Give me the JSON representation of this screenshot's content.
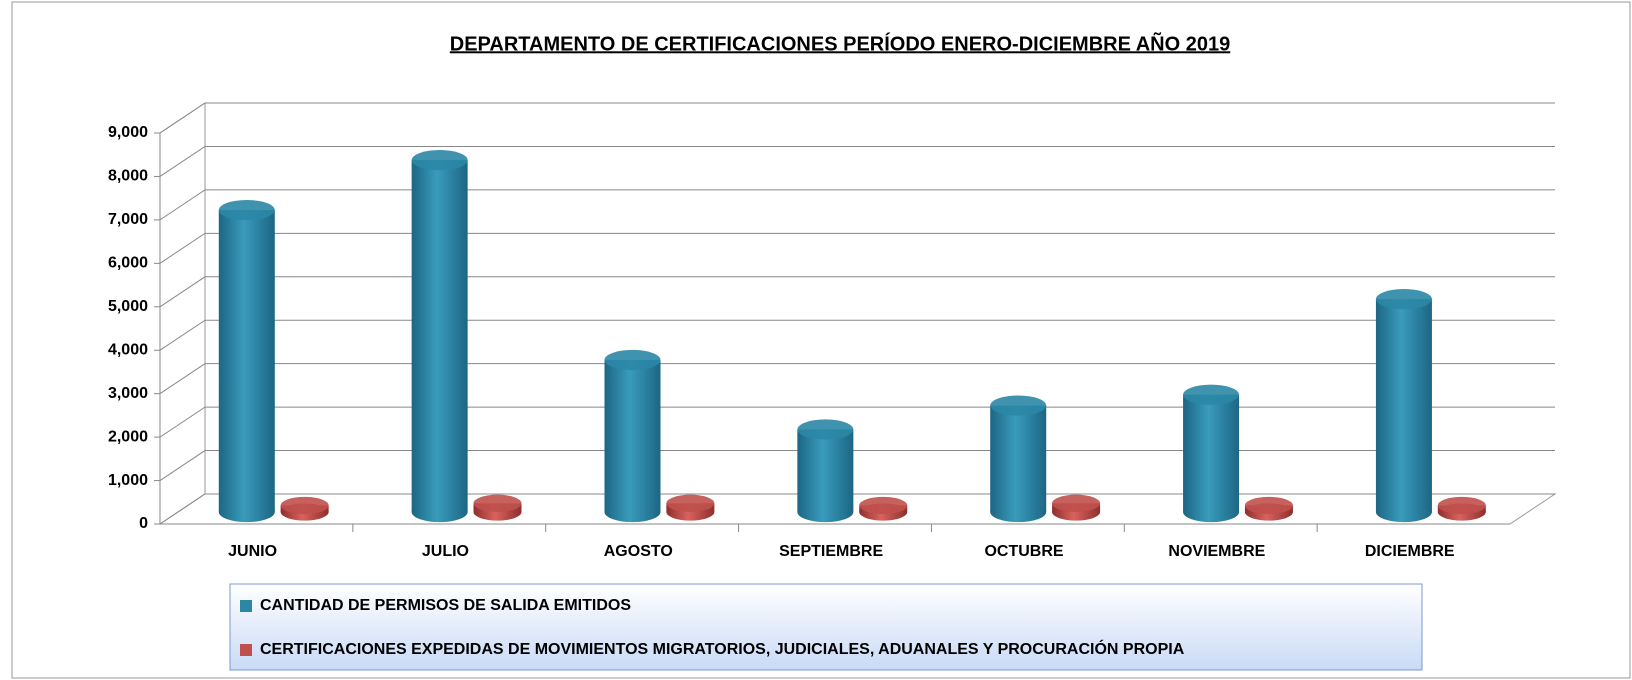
{
  "chart_data": {
    "type": "bar",
    "title": "DEPARTAMENTO DE CERTIFICACIONES PERÍODO ENERO-DICIEMBRE AÑO 2019",
    "categories": [
      "JUNIO",
      "JULIO",
      "AGOSTO",
      "SEPTIEMBRE",
      "OCTUBRE",
      "NOVIEMBRE",
      "DICIEMBRE"
    ],
    "series": [
      {
        "name": "CANTIDAD DE PERMISOS DE SALIDA EMITIDOS",
        "color": "#2b87a6",
        "values": [
          6950,
          8100,
          3500,
          1900,
          2450,
          2700,
          4900
        ]
      },
      {
        "name": "CERTIFICACIONES EXPEDIDAS DE MOVIMIENTOS MIGRATORIOS, JUDICIALES, ADUANALES Y PROCURACIÓN PROPIA",
        "color": "#c0504d",
        "values": [
          150,
          200,
          200,
          150,
          200,
          150,
          150
        ]
      }
    ],
    "ylim": [
      0,
      9000
    ],
    "yticks": [
      0,
      {
        "value": 1000,
        "label": "1,000"
      },
      {
        "value": 2000,
        "label": "2,000"
      },
      {
        "value": 3000,
        "label": "3,000"
      },
      {
        "value": 4000,
        "label": "4,000"
      },
      {
        "value": 5000,
        "label": "5,000"
      },
      {
        "value": 6000,
        "label": "6,000"
      },
      {
        "value": 7000,
        "label": "7,000"
      },
      {
        "value": 8000,
        "label": "8,000"
      },
      {
        "value": 9000,
        "label": "9,000"
      }
    ],
    "grid": true
  }
}
